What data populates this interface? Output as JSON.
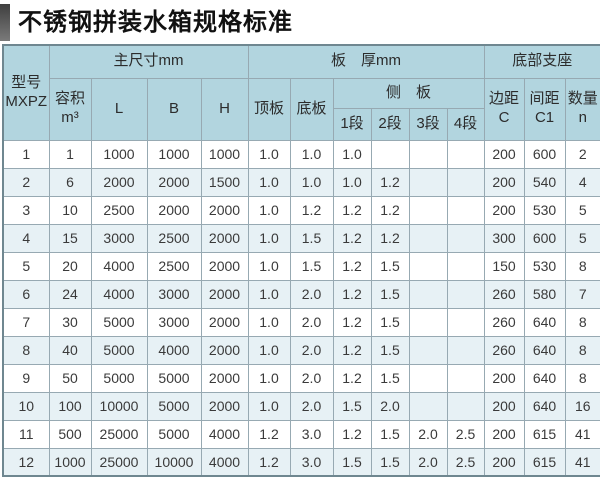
{
  "page": {
    "title": "不锈钢拼装水箱规格标准"
  },
  "table": {
    "header": {
      "model_line1": "型号",
      "model_line2": "MXPZ",
      "group_main": "主尺寸mm",
      "group_thickness": "板　厚mm",
      "group_support": "底部支座",
      "vol_line1": "容积",
      "vol_line2": "m³",
      "col_l": "L",
      "col_b": "B",
      "col_h": "H",
      "top_plate": "顶板",
      "bottom_plate": "底板",
      "side_plate": "侧　板",
      "seg_1": "1段",
      "seg_2": "2段",
      "seg_3": "3段",
      "seg_4": "4段",
      "edge_line1": "边距",
      "edge_line2": "C",
      "spacing_line1": "间距",
      "spacing_line2": "C1",
      "qty_line1": "数量",
      "qty_line2": "n"
    },
    "rows": [
      [
        "1",
        "1",
        "1000",
        "1000",
        "1000",
        "1.0",
        "1.0",
        "1.0",
        "",
        "",
        "",
        "200",
        "600",
        "2"
      ],
      [
        "2",
        "6",
        "2000",
        "2000",
        "1500",
        "1.0",
        "1.0",
        "1.0",
        "1.2",
        "",
        "",
        "200",
        "540",
        "4"
      ],
      [
        "3",
        "10",
        "2500",
        "2000",
        "2000",
        "1.0",
        "1.2",
        "1.2",
        "1.2",
        "",
        "",
        "200",
        "530",
        "5"
      ],
      [
        "4",
        "15",
        "3000",
        "2500",
        "2000",
        "1.0",
        "1.5",
        "1.2",
        "1.2",
        "",
        "",
        "300",
        "600",
        "5"
      ],
      [
        "5",
        "20",
        "4000",
        "2500",
        "2000",
        "1.0",
        "1.5",
        "1.2",
        "1.5",
        "",
        "",
        "150",
        "530",
        "8"
      ],
      [
        "6",
        "24",
        "4000",
        "3000",
        "2000",
        "1.0",
        "2.0",
        "1.2",
        "1.5",
        "",
        "",
        "260",
        "580",
        "7"
      ],
      [
        "7",
        "30",
        "5000",
        "3000",
        "2000",
        "1.0",
        "2.0",
        "1.2",
        "1.5",
        "",
        "",
        "260",
        "640",
        "8"
      ],
      [
        "8",
        "40",
        "5000",
        "4000",
        "2000",
        "1.0",
        "2.0",
        "1.2",
        "1.5",
        "",
        "",
        "260",
        "640",
        "8"
      ],
      [
        "9",
        "50",
        "5000",
        "5000",
        "2000",
        "1.0",
        "2.0",
        "1.2",
        "1.5",
        "",
        "",
        "200",
        "640",
        "8"
      ],
      [
        "10",
        "100",
        "10000",
        "5000",
        "2000",
        "1.0",
        "2.0",
        "1.5",
        "2.0",
        "",
        "",
        "200",
        "640",
        "16"
      ],
      [
        "11",
        "500",
        "25000",
        "5000",
        "4000",
        "1.2",
        "3.0",
        "1.2",
        "1.5",
        "2.0",
        "2.5",
        "200",
        "615",
        "41"
      ],
      [
        "12",
        "1000",
        "25000",
        "10000",
        "4000",
        "1.2",
        "3.0",
        "1.5",
        "1.5",
        "2.0",
        "2.5",
        "200",
        "615",
        "41"
      ]
    ]
  },
  "colors": {
    "header_bg": "#b2d5df",
    "row_alt_bg": "#e7f1f5",
    "row_bg": "#ffffff",
    "grid_border": "#97a9b2",
    "outer_border": "#6f8790",
    "text": "#3a3a3a",
    "title_text": "#111111",
    "title_bar_top": "#3f3f3f",
    "title_bar_bottom": "#7a7a7a"
  }
}
